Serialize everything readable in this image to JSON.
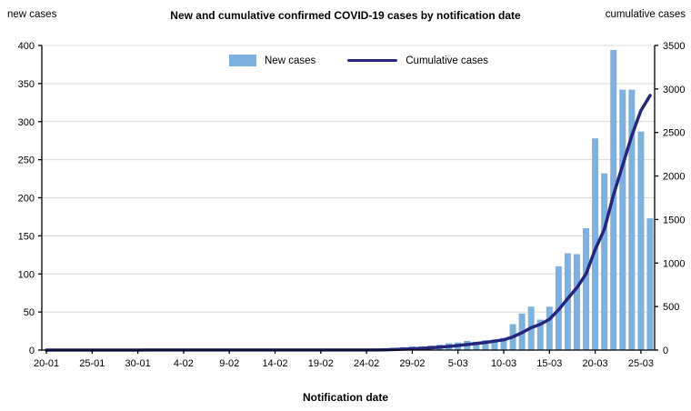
{
  "chart": {
    "title": "New and cumulative confirmed COVID-19 cases by notification date",
    "left_axis_title": "new cases",
    "right_axis_title": "cumulative cases",
    "x_axis_title": "Notification date",
    "legend": {
      "new_cases": "New cases",
      "cumulative": "Cumulative cases"
    }
  },
  "colors": {
    "bar": "#7CB1E0",
    "line": "#26267E",
    "grid": "#D9D9D9",
    "axis": "#000000",
    "text": "#000000",
    "background": "#FFFFFF"
  },
  "chart_data": {
    "type": "bar",
    "title": "New and cumulative confirmed COVID-19 cases by notification date",
    "xlabel": "Notification date",
    "ylabel_left": "new cases",
    "ylabel_right": "cumulative cases",
    "grid": "horizontal",
    "legend_position": "top-center",
    "left_ylim": [
      0,
      400
    ],
    "left_ticks": [
      0,
      50,
      100,
      150,
      200,
      250,
      300,
      350,
      400
    ],
    "right_ylim": [
      0,
      3500
    ],
    "right_ticks": [
      0,
      500,
      1000,
      1500,
      2000,
      2500,
      3000,
      3500
    ],
    "x_tick_indices": [
      0,
      5,
      10,
      15,
      20,
      25,
      30,
      35,
      40,
      45,
      50,
      55,
      60,
      65
    ],
    "x_tick_labels": [
      "20-01",
      "25-01",
      "30-01",
      "4-02",
      "9-02",
      "14-02",
      "19-02",
      "24-02",
      "29-02",
      "5-03",
      "10-03",
      "15-03",
      "20-03",
      "25-03"
    ],
    "x": [
      "20-01",
      "21-01",
      "22-01",
      "23-01",
      "24-01",
      "25-01",
      "26-01",
      "27-01",
      "28-01",
      "29-01",
      "30-01",
      "31-01",
      "1-02",
      "2-02",
      "3-02",
      "4-02",
      "5-02",
      "6-02",
      "7-02",
      "8-02",
      "9-02",
      "10-02",
      "11-02",
      "12-02",
      "13-02",
      "14-02",
      "15-02",
      "16-02",
      "17-02",
      "18-02",
      "19-02",
      "20-02",
      "21-02",
      "22-02",
      "23-02",
      "24-02",
      "25-02",
      "26-02",
      "27-02",
      "28-02",
      "29-02",
      "1-03",
      "2-03",
      "3-03",
      "4-03",
      "5-03",
      "6-03",
      "7-03",
      "8-03",
      "9-03",
      "10-03",
      "11-03",
      "12-03",
      "13-03",
      "14-03",
      "15-03",
      "16-03",
      "17-03",
      "18-03",
      "19-03",
      "20-03",
      "21-03",
      "22-03",
      "23-03",
      "24-03",
      "25-03",
      "26-03"
    ],
    "series": [
      {
        "name": "New cases",
        "type": "bar",
        "axis": "left",
        "values": [
          0,
          0,
          0,
          0,
          0,
          0,
          0,
          0,
          0,
          0,
          0,
          1,
          0,
          0,
          0,
          0,
          0,
          0,
          0,
          0,
          0,
          0,
          0,
          0,
          0,
          0,
          0,
          0,
          0,
          0,
          0,
          0,
          0,
          0,
          0,
          0,
          0,
          2,
          3,
          4,
          5,
          5,
          6,
          7,
          9,
          10,
          12,
          11,
          13,
          14,
          16,
          34,
          48,
          57,
          40,
          57,
          110,
          127,
          126,
          160,
          278,
          232,
          394,
          342,
          342,
          287,
          173
        ]
      },
      {
        "name": "Cumulative cases",
        "type": "line",
        "axis": "right",
        "values": [
          0,
          0,
          0,
          0,
          0,
          0,
          0,
          0,
          0,
          0,
          0,
          1,
          1,
          1,
          1,
          1,
          1,
          1,
          1,
          1,
          1,
          1,
          1,
          1,
          1,
          1,
          1,
          1,
          1,
          1,
          1,
          1,
          1,
          1,
          1,
          1,
          1,
          3,
          6,
          10,
          15,
          20,
          26,
          33,
          42,
          52,
          64,
          75,
          88,
          102,
          118,
          152,
          200,
          257,
          297,
          354,
          464,
          591,
          717,
          877,
          1155,
          1387,
          1781,
          2123,
          2465,
          2752,
          2925
        ]
      }
    ]
  }
}
